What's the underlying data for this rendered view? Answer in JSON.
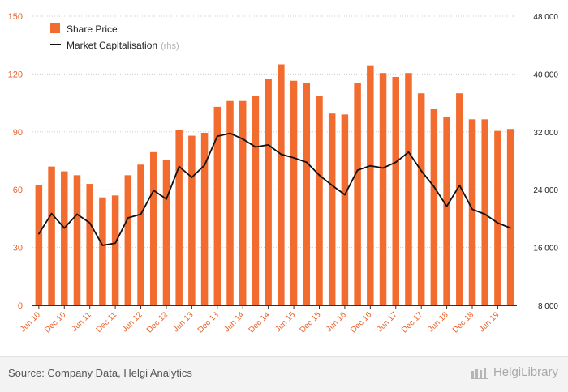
{
  "chart_data": {
    "type": "bar+line",
    "legend_position": "top-left",
    "grid": true,
    "left_axis": {
      "ylim": [
        0,
        150
      ],
      "ticks": [
        "0",
        "30",
        "60",
        "90",
        "120",
        "150"
      ]
    },
    "right_axis": {
      "ylim": [
        8000,
        48000
      ],
      "ticks": [
        "8 000",
        "16 000",
        "24 000",
        "32 000",
        "40 000",
        "48 000"
      ]
    },
    "x_tick_labels": [
      "Jun 10",
      "Dec 10",
      "Jun 11",
      "Dec 11",
      "Jun 12",
      "Dec 12",
      "Jun 13",
      "Dec 13",
      "Jun 14",
      "Dec 14",
      "Jun 15",
      "Dec 15",
      "Jun 16",
      "Dec 16",
      "Jun 17",
      "Dec 17",
      "Jun 18",
      "Dec 18",
      "Jun 19"
    ],
    "periods": [
      "Jun 10",
      "Sep 10",
      "Dec 10",
      "Mar 11",
      "Jun 11",
      "Sep 11",
      "Dec 11",
      "Mar 12",
      "Jun 12",
      "Sep 12",
      "Dec 12",
      "Mar 13",
      "Jun 13",
      "Sep 13",
      "Dec 13",
      "Mar 14",
      "Jun 14",
      "Sep 14",
      "Dec 14",
      "Mar 15",
      "Jun 15",
      "Sep 15",
      "Dec 15",
      "Mar 16",
      "Jun 16",
      "Sep 16",
      "Dec 16",
      "Mar 17",
      "Jun 17",
      "Sep 17",
      "Dec 17",
      "Mar 18",
      "Jun 18",
      "Sep 18",
      "Dec 18",
      "Mar 19",
      "Jun 19",
      "Sep 19"
    ],
    "series": [
      {
        "name": "Share Price",
        "type": "bar",
        "axis": "left",
        "color": "#f26c2f",
        "values": [
          62.5,
          72,
          69.5,
          67.5,
          63,
          56,
          57,
          67.5,
          73,
          79.5,
          75.5,
          91,
          88,
          89.5,
          103,
          106,
          106,
          108.5,
          117.5,
          125,
          116.5,
          115.5,
          108.5,
          99.5,
          99,
          115.5,
          124.5,
          120.5,
          118.5,
          120.5,
          110,
          102,
          97.5,
          110,
          96.5,
          96.5,
          90.5,
          91.5
        ]
      },
      {
        "name": "Market Capitalisation",
        "note": "(rhs)",
        "type": "line",
        "axis": "right",
        "color": "#111111",
        "values": [
          17900,
          20700,
          18700,
          20600,
          19400,
          16300,
          16600,
          20100,
          20600,
          23900,
          22700,
          27200,
          25700,
          27400,
          31400,
          31800,
          31000,
          29900,
          30200,
          28900,
          28400,
          27800,
          26000,
          24600,
          23300,
          26700,
          27300,
          27000,
          27800,
          29200,
          26600,
          24400,
          21700,
          24600,
          21300,
          20600,
          19400,
          18700
        ]
      }
    ]
  },
  "footer": {
    "source": "Source: Company Data, Helgi Analytics",
    "logo_text": "HelgiLibrary"
  }
}
